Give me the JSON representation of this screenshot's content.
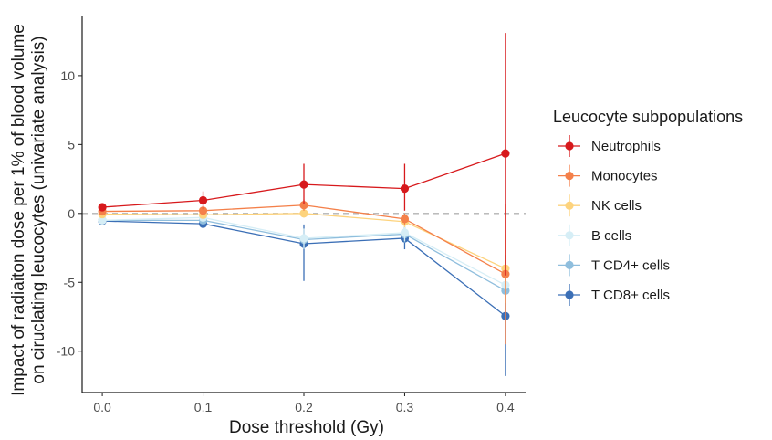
{
  "chart_data": {
    "type": "line",
    "xlabel": "Dose threshold (Gy)",
    "ylabel_lines": [
      "Impact of radiaiton dose per 1% of blood volume",
      "on ciruclating leucocytes (univariate analysis)"
    ],
    "x": [
      0.0,
      0.1,
      0.2,
      0.3,
      0.4
    ],
    "x_tick_labels": [
      "0.0",
      "0.1",
      "0.2",
      "0.3",
      "0.4"
    ],
    "xlim": [
      -0.02,
      0.42
    ],
    "y_ticks": [
      10,
      5,
      0,
      -5,
      -10
    ],
    "ylim": [
      -13,
      14.3
    ],
    "reference_line": 0,
    "grid": false,
    "legend": {
      "title": "Leucocyte subpopulations",
      "position": "right"
    },
    "series": [
      {
        "name": "Neutrophils",
        "color": "#d7191c",
        "values": [
          0.45,
          0.95,
          2.1,
          1.8,
          4.35
        ],
        "lower": [
          0.2,
          0.3,
          0.7,
          0.2,
          -4.5
        ],
        "upper": [
          0.75,
          1.6,
          3.6,
          3.6,
          13.1
        ]
      },
      {
        "name": "Monocytes",
        "color": "#f4804a",
        "values": [
          0.15,
          0.2,
          0.6,
          -0.4,
          -4.4
        ],
        "lower": [
          0.0,
          -0.1,
          0.2,
          -0.8,
          -9.5
        ],
        "upper": [
          0.3,
          0.5,
          1.0,
          0.0,
          0.7
        ]
      },
      {
        "name": "NK cells",
        "color": "#fdd37d",
        "values": [
          -0.05,
          -0.1,
          0.0,
          -0.6,
          -4.0
        ],
        "lower": [
          -0.2,
          -0.3,
          -0.3,
          -1.0,
          -6.5
        ],
        "upper": [
          0.1,
          0.1,
          0.3,
          -0.2,
          -1.5
        ]
      },
      {
        "name": "B cells",
        "color": "#d6eef6",
        "values": [
          -0.5,
          -0.3,
          -1.8,
          -1.4,
          -5.2
        ],
        "lower": [
          -0.7,
          -0.6,
          -2.5,
          -2.0,
          -6.5
        ],
        "upper": [
          -0.3,
          0.0,
          -1.1,
          -0.8,
          -3.9
        ]
      },
      {
        "name": "T CD4+ cells",
        "color": "#8fbedd",
        "values": [
          -0.5,
          -0.5,
          -1.9,
          -1.5,
          -5.6
        ],
        "lower": [
          -0.7,
          -0.8,
          -2.6,
          -2.1,
          -6.8
        ],
        "upper": [
          -0.3,
          -0.2,
          -1.2,
          -0.9,
          -4.4
        ]
      },
      {
        "name": "T CD8+ cells",
        "color": "#3b6fb6",
        "values": [
          -0.55,
          -0.75,
          -2.2,
          -1.8,
          -7.45
        ],
        "lower": [
          -0.8,
          -1.0,
          -4.9,
          -2.6,
          -11.8
        ],
        "upper": [
          -0.3,
          -0.5,
          -0.8,
          -1.0,
          -3.0
        ]
      }
    ]
  }
}
